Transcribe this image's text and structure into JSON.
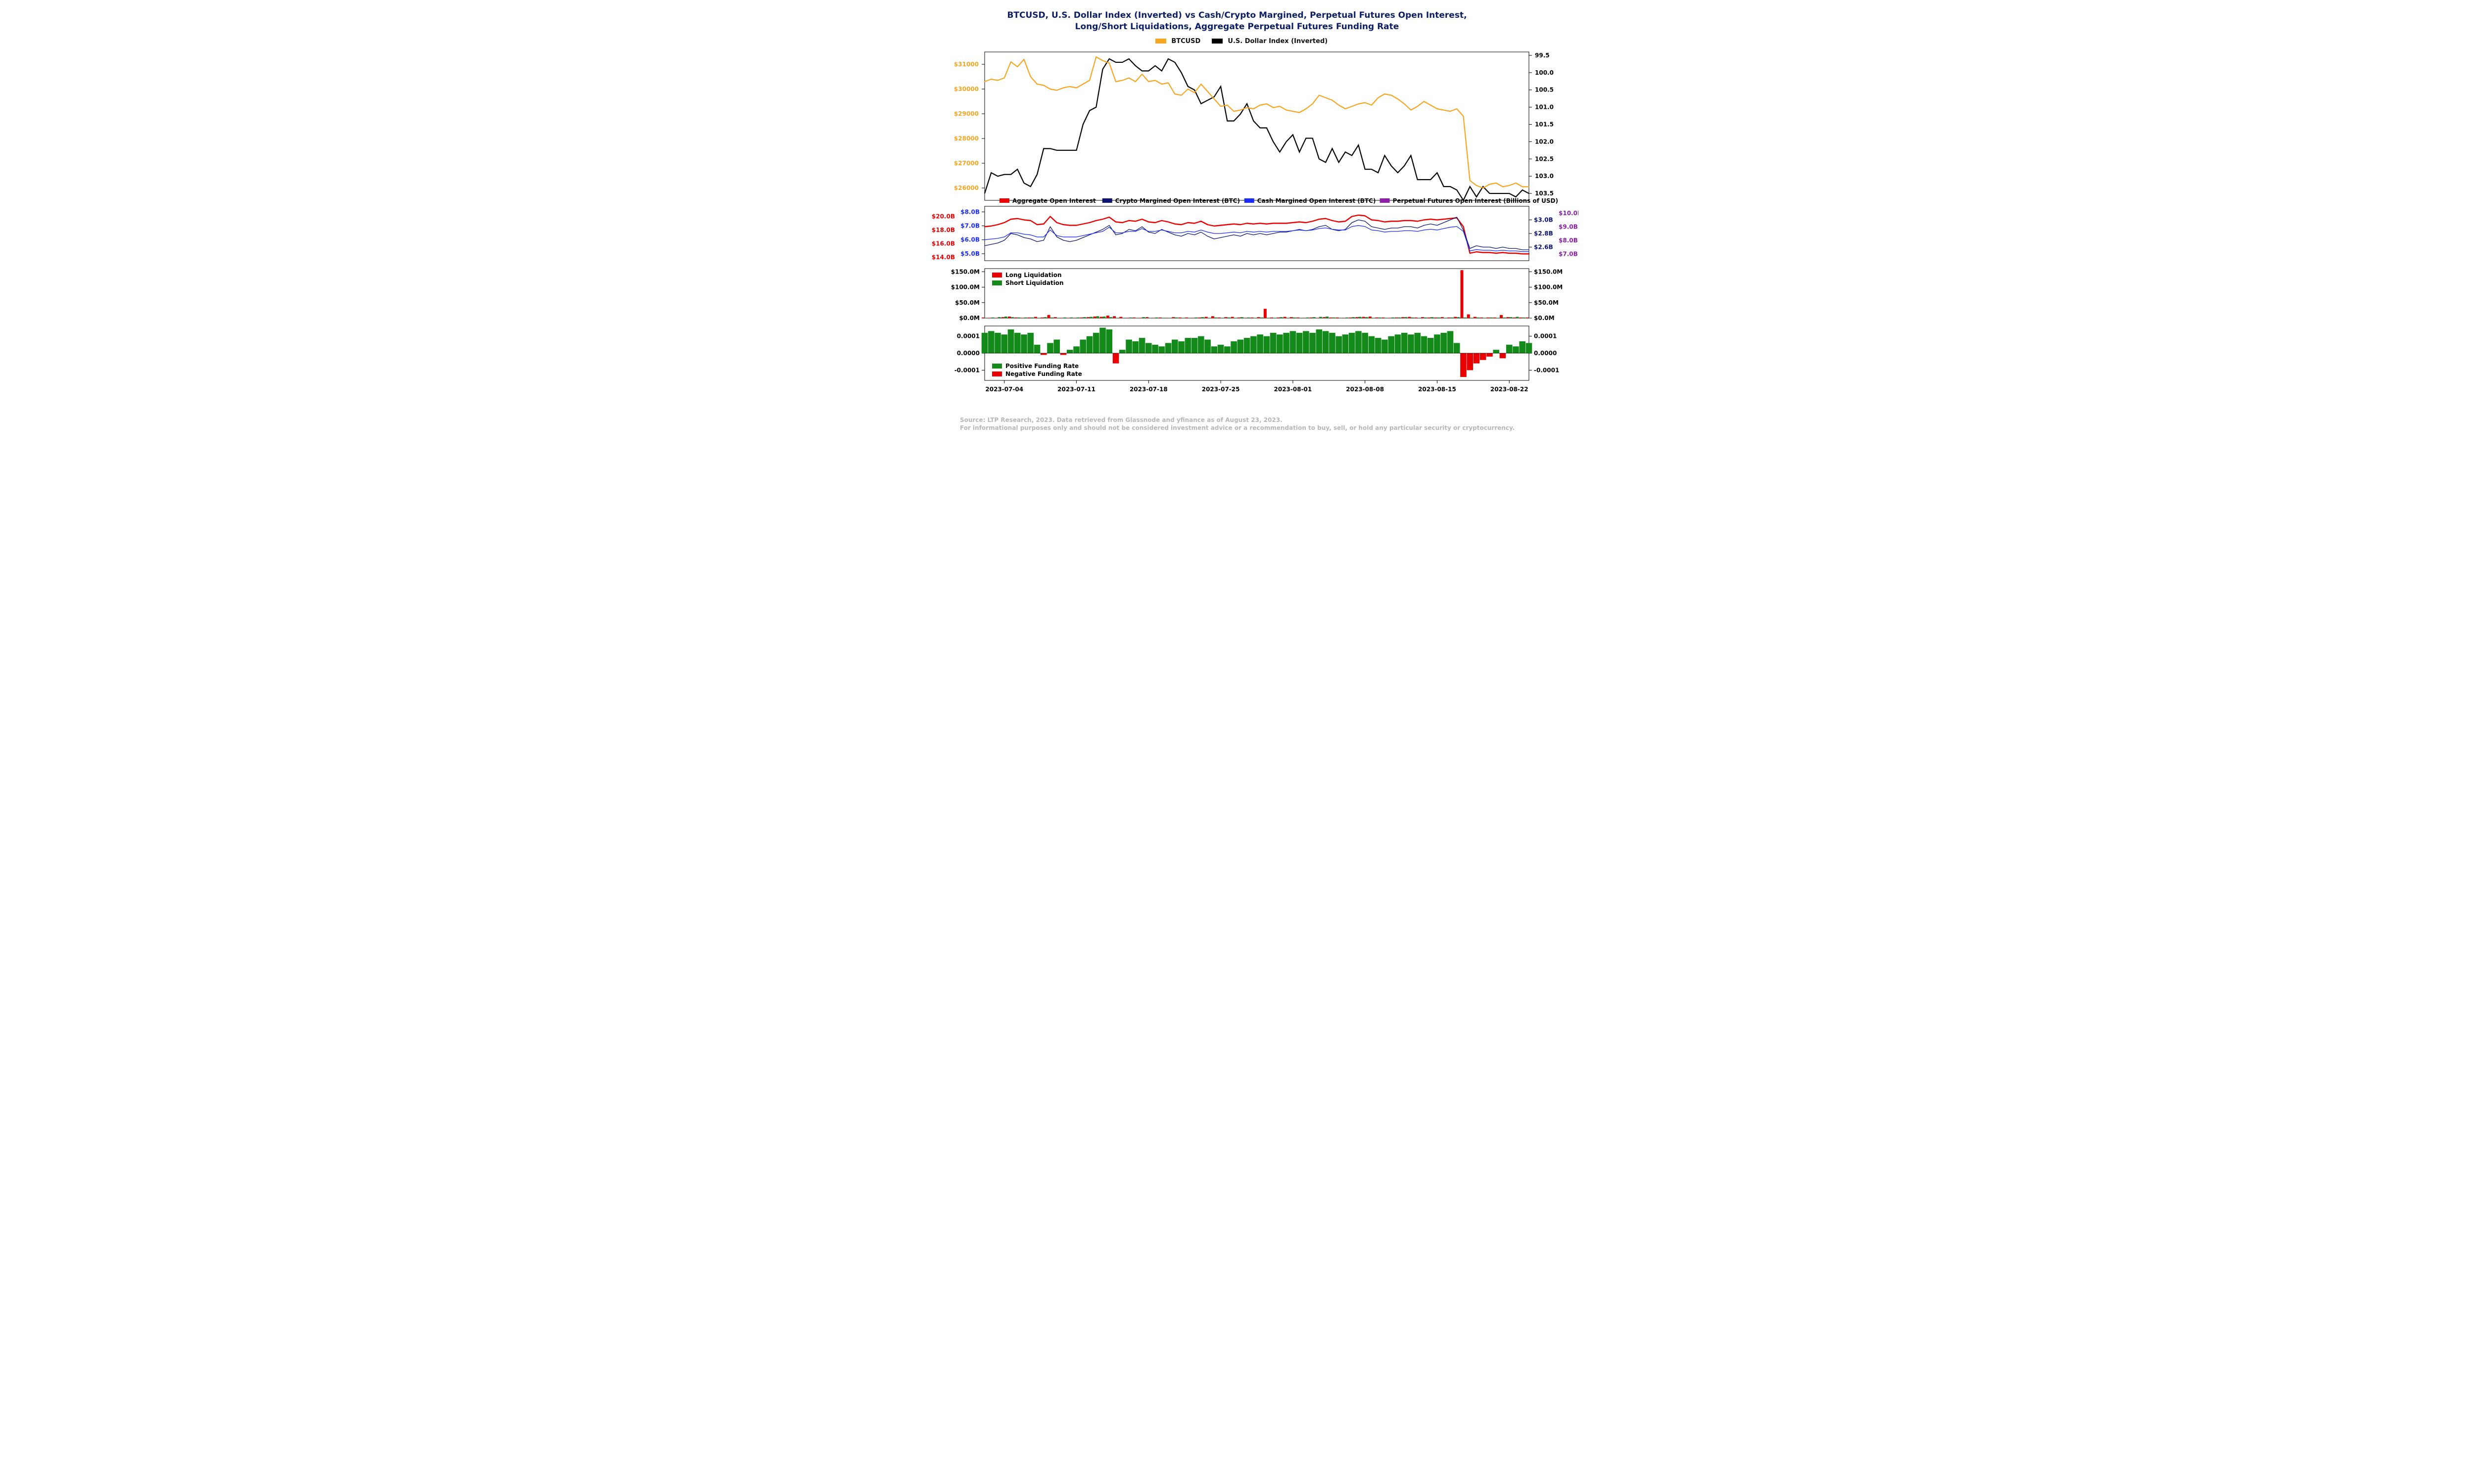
{
  "title_line1": "BTCUSD, U.S. Dollar Index (Inverted) vs Cash/Crypto Margined, Perpetual Futures Open Interest,",
  "title_line2": "Long/Short Liquidations, Aggregate Perpetual Futures Funding Rate",
  "top_legend": {
    "items": [
      {
        "label": "BTCUSD",
        "color": "#f6a623"
      },
      {
        "label": "U.S. Dollar Index (Inverted)",
        "color": "#000000"
      }
    ]
  },
  "colors": {
    "btc": "#f6a623",
    "dxy": "#000000",
    "agg_oi": "#e90000",
    "crypto_oi": "#0b1470",
    "cash_oi": "#1a2bff",
    "perp_oi": "#8b1fa6",
    "long_liq": "#e90000",
    "short_liq": "#138a1a",
    "pos_fund": "#138a1a",
    "neg_fund": "#e90000",
    "axis": "#000000"
  },
  "x_axis": {
    "ticks": [
      "2023-07-04",
      "2023-07-11",
      "2023-07-18",
      "2023-07-25",
      "2023-08-01",
      "2023-08-08",
      "2023-08-15",
      "2023-08-22"
    ],
    "fontsize": 12
  },
  "panel1": {
    "type": "line",
    "left_ticks": [
      "$26000",
      "$27000",
      "$28000",
      "$29000",
      "$30000",
      "$31000"
    ],
    "left_color": "#f6a623",
    "left_range": [
      25500,
      31500
    ],
    "right_ticks": [
      "99.5",
      "100.0",
      "100.5",
      "101.0",
      "101.5",
      "102.0",
      "102.5",
      "103.0",
      "103.5"
    ],
    "right_range": [
      99.4,
      103.7
    ],
    "right_color": "#000000",
    "btc": [
      30300,
      30400,
      30350,
      30450,
      31100,
      30900,
      31200,
      30500,
      30200,
      30150,
      30000,
      29950,
      30050,
      30100,
      30050,
      30200,
      30350,
      31300,
      31150,
      31050,
      30300,
      30350,
      30450,
      30300,
      30600,
      30300,
      30350,
      30200,
      30250,
      29800,
      29750,
      30000,
      29850,
      30200,
      29900,
      29600,
      29300,
      29350,
      29100,
      29150,
      29250,
      29200,
      29350,
      29400,
      29250,
      29300,
      29150,
      29100,
      29050,
      29200,
      29400,
      29750,
      29650,
      29550,
      29350,
      29200,
      29300,
      29400,
      29450,
      29350,
      29650,
      29800,
      29750,
      29600,
      29400,
      29150,
      29300,
      29500,
      29350,
      29200,
      29150,
      29100,
      29200,
      28900,
      26300,
      26100,
      26000,
      26150,
      26200,
      26050,
      26100,
      26200,
      26050,
      26050
    ],
    "dxy_plot": [
      103.5,
      102.9,
      103.0,
      102.95,
      102.95,
      102.8,
      103.2,
      103.3,
      102.95,
      102.2,
      102.2,
      102.25,
      102.25,
      102.25,
      102.25,
      101.5,
      101.1,
      101.0,
      99.9,
      99.6,
      99.7,
      99.7,
      99.6,
      99.8,
      99.95,
      99.95,
      99.8,
      99.95,
      99.6,
      99.7,
      100.0,
      100.4,
      100.5,
      100.9,
      100.8,
      100.7,
      100.4,
      101.4,
      101.4,
      101.2,
      100.9,
      101.4,
      101.6,
      101.6,
      102.0,
      102.3,
      102.0,
      101.8,
      102.3,
      101.9,
      101.9,
      102.5,
      102.6,
      102.2,
      102.6,
      102.3,
      102.4,
      102.1,
      102.8,
      102.8,
      102.9,
      102.4,
      102.7,
      102.9,
      102.7,
      102.4,
      103.1,
      103.1,
      103.1,
      102.9,
      103.3,
      103.3,
      103.4,
      103.7,
      103.3,
      103.6,
      103.3,
      103.5,
      103.5,
      103.5,
      103.5,
      103.6,
      103.4,
      103.5
    ]
  },
  "panel2": {
    "type": "line",
    "axis_left1": {
      "ticks": [
        "$14.0B",
        "$16.0B",
        "$18.0B",
        "$20.0B"
      ],
      "range": [
        13.5,
        21.5
      ],
      "color": "#e90000"
    },
    "axis_left2": {
      "ticks": [
        "$5.0B",
        "$6.0B",
        "$7.0B",
        "$8.0B"
      ],
      "range": [
        4.5,
        8.4
      ],
      "color": "#1a2bff"
    },
    "axis_right1": {
      "ticks": [
        "$2.6B",
        "$2.8B",
        "$3.0B"
      ],
      "range": [
        2.4,
        3.2
      ],
      "color": "#0b1470"
    },
    "axis_right2": {
      "ticks": [
        "$7.0B",
        "$8.0B",
        "$9.0B",
        "$10.0B"
      ],
      "range": [
        6.5,
        10.5
      ],
      "color": "#8b1fa6"
    },
    "legend": [
      {
        "label": "Aggregate Open Interest",
        "color": "#e90000"
      },
      {
        "label": "Crypto Margined Open Interest (BTC)",
        "color": "#0b1470"
      },
      {
        "label": "Cash Margined Open Interest (BTC)",
        "color": "#1a2bff"
      },
      {
        "label": "Perpetual Futures Open Interest (Billions of USD)",
        "color": "#8b1fa6"
      }
    ],
    "agg": [
      18.5,
      18.6,
      18.8,
      19.1,
      19.6,
      19.7,
      19.5,
      19.4,
      18.8,
      18.9,
      20.0,
      19.1,
      18.8,
      18.7,
      18.7,
      18.9,
      19.1,
      19.4,
      19.6,
      19.9,
      19.2,
      19.1,
      19.4,
      19.3,
      19.6,
      19.2,
      19.1,
      19.4,
      19.2,
      18.9,
      18.8,
      19.1,
      19.0,
      19.3,
      18.8,
      18.6,
      18.7,
      18.8,
      18.9,
      18.8,
      19.0,
      18.9,
      19.0,
      18.9,
      19.0,
      19.0,
      19.0,
      19.1,
      19.2,
      19.1,
      19.3,
      19.6,
      19.7,
      19.4,
      19.2,
      19.3,
      20.0,
      20.2,
      20.1,
      19.5,
      19.4,
      19.2,
      19.3,
      19.3,
      19.4,
      19.4,
      19.3,
      19.5,
      19.6,
      19.5,
      19.6,
      19.7,
      19.8,
      18.5,
      14.6,
      14.8,
      14.7,
      14.7,
      14.6,
      14.7,
      14.6,
      14.6,
      14.5,
      14.5
    ],
    "crypto": [
      2.62,
      2.64,
      2.66,
      2.7,
      2.8,
      2.78,
      2.74,
      2.72,
      2.68,
      2.7,
      2.9,
      2.75,
      2.7,
      2.68,
      2.7,
      2.74,
      2.78,
      2.82,
      2.86,
      2.92,
      2.78,
      2.8,
      2.86,
      2.84,
      2.9,
      2.82,
      2.8,
      2.86,
      2.82,
      2.78,
      2.76,
      2.8,
      2.78,
      2.82,
      2.76,
      2.72,
      2.74,
      2.76,
      2.78,
      2.76,
      2.8,
      2.78,
      2.8,
      2.78,
      2.8,
      2.82,
      2.82,
      2.84,
      2.86,
      2.84,
      2.86,
      2.9,
      2.92,
      2.86,
      2.84,
      2.86,
      2.96,
      3.0,
      2.98,
      2.9,
      2.88,
      2.86,
      2.88,
      2.88,
      2.9,
      2.9,
      2.88,
      2.92,
      2.94,
      2.92,
      2.96,
      3.0,
      3.04,
      2.85,
      2.58,
      2.62,
      2.6,
      2.6,
      2.58,
      2.6,
      2.58,
      2.58,
      2.56,
      2.56
    ],
    "cash": [
      6.0,
      6.05,
      6.1,
      6.2,
      6.5,
      6.5,
      6.4,
      6.35,
      6.2,
      6.2,
      6.7,
      6.3,
      6.2,
      6.2,
      6.2,
      6.3,
      6.4,
      6.5,
      6.6,
      6.9,
      6.5,
      6.5,
      6.6,
      6.6,
      6.8,
      6.6,
      6.6,
      6.7,
      6.6,
      6.5,
      6.5,
      6.6,
      6.55,
      6.7,
      6.55,
      6.45,
      6.45,
      6.5,
      6.55,
      6.5,
      6.6,
      6.55,
      6.6,
      6.55,
      6.6,
      6.6,
      6.6,
      6.65,
      6.7,
      6.65,
      6.7,
      6.8,
      6.85,
      6.75,
      6.7,
      6.7,
      6.95,
      7.02,
      6.95,
      6.7,
      6.65,
      6.55,
      6.6,
      6.6,
      6.65,
      6.65,
      6.6,
      6.7,
      6.75,
      6.7,
      6.8,
      6.9,
      6.95,
      6.6,
      5.2,
      5.3,
      5.25,
      5.25,
      5.2,
      5.25,
      5.2,
      5.2,
      5.15,
      5.15
    ]
  },
  "panel3": {
    "type": "bar",
    "left_ticks": [
      "$0.0M",
      "$50.0M",
      "$100.0M",
      "$150.0M"
    ],
    "left_range": [
      0,
      160
    ],
    "right_ticks": [
      "$0.0M",
      "$50.0M",
      "$100.0M",
      "$150.0M"
    ],
    "right_range": [
      0,
      160
    ],
    "legend": [
      {
        "label": "Long Liquidation",
        "color": "#e90000"
      },
      {
        "label": "Short Liquidation",
        "color": "#138a1a"
      }
    ],
    "long": [
      2,
      1,
      1,
      3,
      5,
      2,
      1,
      2,
      4,
      2,
      10,
      3,
      1,
      1,
      1,
      2,
      3,
      5,
      4,
      8,
      6,
      4,
      1,
      2,
      1,
      3,
      1,
      2,
      1,
      3,
      2,
      2,
      1,
      2,
      4,
      6,
      2,
      3,
      4,
      2,
      1,
      2,
      3,
      30,
      2,
      2,
      4,
      3,
      2,
      1,
      2,
      1,
      3,
      2,
      2,
      1,
      2,
      3,
      4,
      5,
      2,
      2,
      1,
      2,
      3,
      4,
      2,
      3,
      2,
      2,
      3,
      2,
      4,
      155,
      12,
      4,
      2,
      2,
      2,
      10,
      3,
      2,
      2,
      2
    ],
    "short": [
      1,
      2,
      3,
      5,
      3,
      2,
      2,
      2,
      1,
      3,
      2,
      1,
      2,
      2,
      2,
      3,
      4,
      6,
      5,
      3,
      1,
      1,
      2,
      1,
      3,
      1,
      2,
      1,
      1,
      2,
      1,
      1,
      2,
      3,
      1,
      2,
      1,
      2,
      1,
      3,
      2,
      1,
      2,
      1,
      1,
      3,
      1,
      2,
      1,
      2,
      3,
      4,
      5,
      2,
      1,
      2,
      3,
      4,
      3,
      1,
      2,
      1,
      2,
      2,
      3,
      2,
      1,
      2,
      3,
      2,
      1,
      2,
      3,
      2,
      1,
      2,
      1,
      2,
      1,
      2,
      3,
      4,
      2,
      1
    ]
  },
  "panel4": {
    "type": "bar",
    "left_ticks": [
      "-0.0001",
      "0.0000",
      "0.0001"
    ],
    "left_range": [
      -0.00016,
      0.00016
    ],
    "right_ticks": [
      "-0.0001",
      "0.0000",
      "0.0001"
    ],
    "legend": [
      {
        "label": "Positive Funding Rate",
        "color": "#138a1a"
      },
      {
        "label": "Negative Funding Rate",
        "color": "#e90000"
      }
    ],
    "funding": [
      0.00012,
      0.00013,
      0.00012,
      0.00011,
      0.00014,
      0.00012,
      0.00011,
      0.00012,
      5e-05,
      -1e-05,
      6e-05,
      8e-05,
      -1e-05,
      2e-05,
      4e-05,
      8e-05,
      0.0001,
      0.00012,
      0.00015,
      0.00014,
      -6e-05,
      2e-05,
      8e-05,
      7e-05,
      9e-05,
      6e-05,
      5e-05,
      4e-05,
      6e-05,
      8e-05,
      7e-05,
      9e-05,
      9e-05,
      0.0001,
      8e-05,
      4e-05,
      5e-05,
      4e-05,
      7e-05,
      8e-05,
      9e-05,
      0.0001,
      0.00011,
      0.0001,
      0.00012,
      0.00011,
      0.00012,
      0.00013,
      0.00012,
      0.00013,
      0.00012,
      0.00014,
      0.00013,
      0.00012,
      0.0001,
      0.00011,
      0.00012,
      0.00013,
      0.00012,
      0.0001,
      9e-05,
      8e-05,
      0.0001,
      0.00011,
      0.00012,
      0.00011,
      0.00012,
      0.0001,
      9e-05,
      0.00011,
      0.00012,
      0.00013,
      6e-05,
      -0.00014,
      -0.0001,
      -6e-05,
      -4e-05,
      -2e-05,
      2e-05,
      -3e-05,
      5e-05,
      4e-05,
      7e-05,
      6e-05
    ]
  },
  "footer_line1": "Source: LTP Research, 2023. Data retrieved from Glassnode and yfinance as of August 23, 2023.",
  "footer_line2": "For informational purposes only and should not be considered investment advice or a recommendation to buy, sell, or hold any particular security or cryptocurrency."
}
